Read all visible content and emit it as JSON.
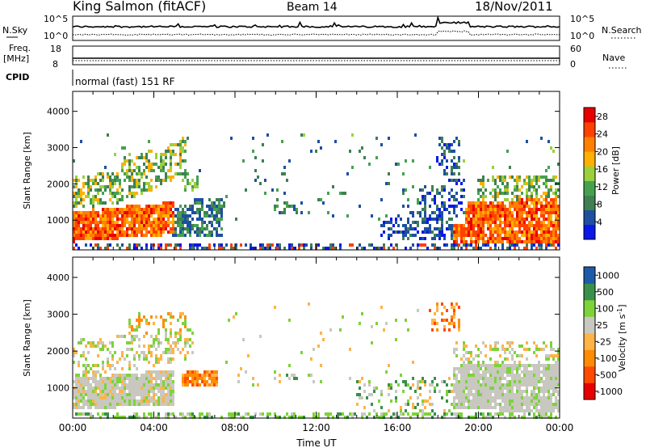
{
  "header": {
    "radar": "King Salmon (fitACF)",
    "beam": "Beam 14",
    "date": "18/Nov/2011"
  },
  "left_labels": {
    "nsky": "N.Sky",
    "freq_line1": "Freq.",
    "freq_line2": "[MHz]",
    "cpid": "CPID"
  },
  "right_labels": {
    "nsearch": "N.Search",
    "nave": "Nave"
  },
  "cpid_text": "normal (fast) 151 RF",
  "colors": {
    "power": [
      "#0a18e8",
      "#1e4fa0",
      "#3f7f52",
      "#46a14f",
      "#9bd03d",
      "#ffb000",
      "#ff8000",
      "#ff4000",
      "#e80000"
    ],
    "velocity": [
      "#e80000",
      "#ff4a00",
      "#ff8c00",
      "#ffb347",
      "#c8c8c0",
      "#7ed23a",
      "#3a8f4a",
      "#1d5aa8"
    ]
  },
  "chart_data": [
    {
      "type": "line",
      "panel": "noise",
      "left_axis": {
        "label": "N.Sky",
        "ticks": [
          "10^5",
          "10^0"
        ]
      },
      "right_axis": {
        "label": "N.Search",
        "ticks": [
          "10^5",
          "10^0"
        ]
      }
    },
    {
      "type": "scatter",
      "panel": "frequency",
      "left_axis": {
        "label": "Freq. [MHz]",
        "ticks": [
          "18",
          "8"
        ]
      },
      "right_axis": {
        "label": "Nave",
        "ticks": [
          "60",
          "0"
        ]
      }
    },
    {
      "type": "heatmap",
      "panel": "power",
      "xlabel": "",
      "ylabel": "Slant Range [km]",
      "ylim": [
        180,
        4550
      ],
      "yticks": [
        "1000",
        "2000",
        "3000",
        "4000"
      ],
      "xlim_hours": [
        0,
        24
      ],
      "colorbar": {
        "label": "Power [dB]",
        "ticks": [
          "4",
          "8",
          "12",
          "16",
          "20",
          "24",
          "28"
        ],
        "range": [
          0,
          30
        ]
      }
    },
    {
      "type": "heatmap",
      "panel": "velocity",
      "xlabel": "Time UT",
      "ylabel": "Slant Range [km]",
      "ylim": [
        180,
        4550
      ],
      "yticks": [
        "1000",
        "2000",
        "3000",
        "4000"
      ],
      "xticks": [
        "00:00",
        "04:00",
        "08:00",
        "12:00",
        "16:00",
        "20:00",
        "00:00"
      ],
      "xlim_hours": [
        0,
        24
      ],
      "colorbar": {
        "label": "Velocity [m s-1]",
        "label_main": "Velocity [m s",
        "label_sup": "-1",
        "label_end": "]",
        "ticks": [
          "1000",
          "500",
          "100",
          "25",
          "-25",
          "-100",
          "-500",
          "-1000"
        ]
      }
    }
  ]
}
